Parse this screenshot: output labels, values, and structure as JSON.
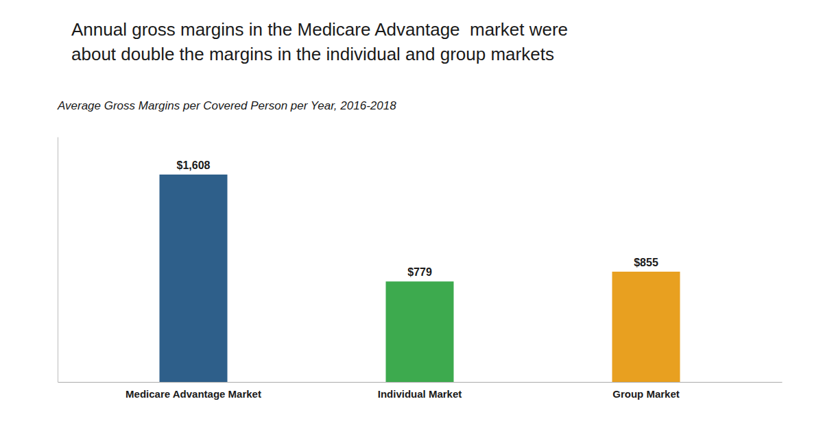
{
  "chart_data": {
    "type": "bar",
    "title": [
      "Annual gross margins in the Medicare Advantage  market were",
      "about double the margins in the individual and group markets"
    ],
    "subtitle": "Average Gross Margins per Covered Person per Year, 2016-2018",
    "categories": [
      "Medicare Advantage Market",
      "Individual Market",
      "Group Market"
    ],
    "values": [
      1608,
      779,
      855
    ],
    "value_labels": [
      "$1,608",
      "$779",
      "$855"
    ],
    "colors": [
      "#2E5F8A",
      "#3DAA4E",
      "#E8A020"
    ],
    "ylim": [
      0,
      1900
    ],
    "data_labels": true,
    "tick_labels": "x",
    "grid": false
  }
}
